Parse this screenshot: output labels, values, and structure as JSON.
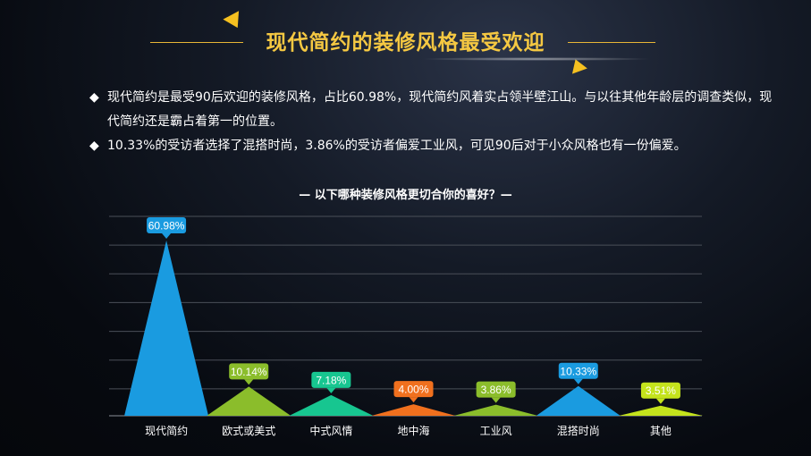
{
  "header": {
    "title": "现代简约的装修风格最受欢迎"
  },
  "bullets": {
    "marker": "◆",
    "items": [
      "现代简约是最受90后欢迎的装修风格，占比60.98%，现代简约风着实占领半壁江山。与以往其他年龄层的调查类似，现代简约还是霸占着第一的位置。",
      "10.33%的受访者选择了混搭时尚，3.86%的受访者偏爱工业风，可见90后对于小众风格也有一份偏爱。"
    ]
  },
  "colors": {
    "title": "#f5c842",
    "accent": "#f5c020",
    "blue": "#1a9be0",
    "green": "#8bbd2b",
    "teal": "#17c690",
    "orange": "#f0701e",
    "yellow_green": "#c4e31c"
  },
  "chart_data": {
    "type": "area",
    "title": "— 以下哪种装修风格更切合你的喜好？—",
    "categories": [
      "现代简约",
      "欧式或美式",
      "中式风情",
      "地中海",
      "工业风",
      "混搭时尚",
      "其他"
    ],
    "values": [
      60.98,
      10.14,
      7.18,
      4.0,
      3.86,
      10.33,
      3.51
    ],
    "labels": [
      "60.98%",
      "10.14%",
      "7.18%",
      "4.00%",
      "3.86%",
      "10.33%",
      "3.51%"
    ],
    "colors": [
      "#1a9be0",
      "#8bbd2b",
      "#17c690",
      "#f0701e",
      "#8bbd2b",
      "#1a9be0",
      "#c4e31c"
    ],
    "ylim": [
      0,
      70
    ],
    "grid": true,
    "legend": "none",
    "xlabel": "",
    "ylabel": ""
  }
}
